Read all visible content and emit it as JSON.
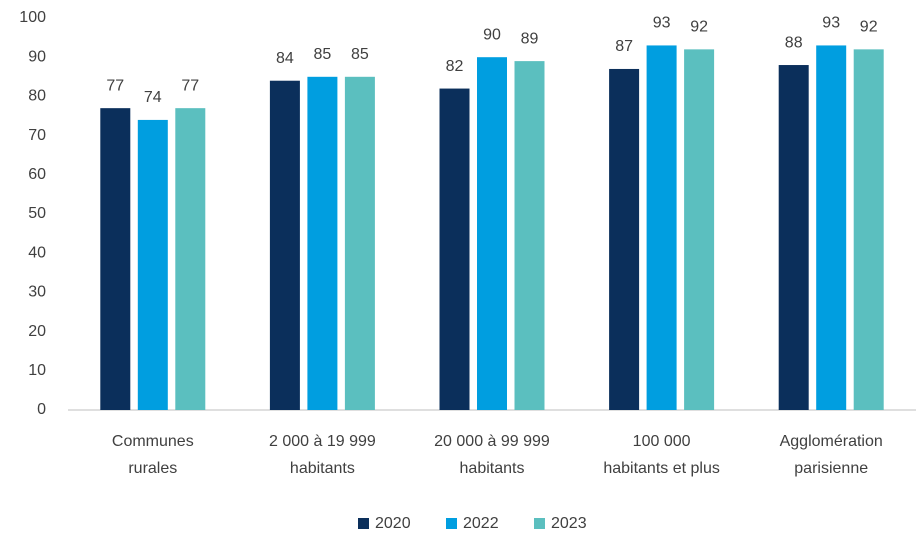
{
  "chart_data": {
    "type": "bar",
    "categories": [
      [
        "Communes",
        "rurales"
      ],
      [
        "2 000 à 19 999",
        "habitants"
      ],
      [
        "20 000 à 99 999",
        "habitants"
      ],
      [
        "100 000",
        "habitants et plus"
      ],
      [
        "Agglomération",
        "parisienne"
      ]
    ],
    "series": [
      {
        "name": "2020",
        "color": "#0b2f5b",
        "values": [
          77,
          84,
          82,
          87,
          88
        ]
      },
      {
        "name": "2022",
        "color": "#009ee0",
        "values": [
          74,
          85,
          90,
          93,
          93
        ]
      },
      {
        "name": "2023",
        "color": "#5bbfbf",
        "values": [
          77,
          85,
          89,
          92,
          92
        ]
      }
    ],
    "ylim": [
      0,
      100
    ],
    "yticks": [
      0,
      10,
      20,
      30,
      40,
      50,
      60,
      70,
      80,
      90,
      100
    ],
    "grid": false,
    "legend": "bottom"
  }
}
